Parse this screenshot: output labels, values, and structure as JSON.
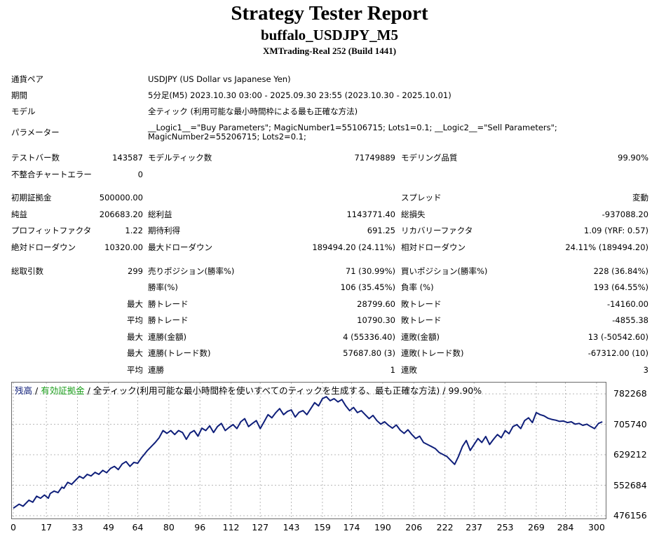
{
  "report": {
    "title": "Strategy Tester Report",
    "subtitle": "buffalo_USDJPY_M5",
    "server": "XMTrading-Real 252 (Build 1441)"
  },
  "info": {
    "symbol_label": "通貨ペア",
    "symbol_value": "USDJPY (US Dollar vs Japanese Yen)",
    "period_label": "期間",
    "period_value": "5分足(M5) 2023.10.30 03:00 - 2025.09.30 23:55 (2023.10.30 - 2025.10.01)",
    "model_label": "モデル",
    "model_value": "全ティック (利用可能な最小時間枠による最も正確な方法)",
    "params_label": "パラメーター",
    "params_value": "__Logic1__=\"Buy Parameters\"; MagicNumber1=55106715; Lots1=0.1; __Logic2__=\"Sell Parameters\"; MagicNumber2=55206715; Lots2=0.1;"
  },
  "bars": {
    "test_bars_label": "テストバー数",
    "test_bars": "143587",
    "model_ticks_label": "モデルティック数",
    "model_ticks": "71749889",
    "model_quality_label": "モデリング品質",
    "model_quality": "99.90%",
    "mismatch_label": "不整合チャートエラー",
    "mismatch": "0"
  },
  "stats": {
    "initial_deposit_label": "初期証拠金",
    "initial_deposit": "500000.00",
    "spread_label": "スプレッド",
    "spread": "変動",
    "net_profit_label": "純益",
    "net_profit": "206683.20",
    "gross_profit_label": "総利益",
    "gross_profit": "1143771.40",
    "gross_loss_label": "総損失",
    "gross_loss": "-937088.20",
    "profit_factor_label": "プロフィットファクタ",
    "profit_factor": "1.22",
    "expected_payoff_label": "期待利得",
    "expected_payoff": "691.25",
    "recovery_factor_label": "リカバリーファクタ",
    "recovery_factor": "1.09 (YRF: 0.57)",
    "abs_dd_label": "絶対ドローダウン",
    "abs_dd": "10320.00",
    "max_dd_label": "最大ドローダウン",
    "max_dd": "189494.20 (24.11%)",
    "rel_dd_label": "相対ドローダウン",
    "rel_dd": "24.11% (189494.20)"
  },
  "trades": {
    "total_label": "総取引数",
    "total": "299",
    "short_label": "売りポジション(勝率%)",
    "short": "71 (30.99%)",
    "long_label": "買いポジション(勝率%)",
    "long": "228 (36.84%)",
    "win_rate_label": "勝率(%)",
    "win_rate": "106 (35.45%)",
    "loss_rate_label": "負率 (%)",
    "loss_rate": "193 (64.55%)",
    "max_label": "最大",
    "avg_label": "平均",
    "win_trade_label": "勝トレード",
    "lose_trade_label": "敗トレード",
    "largest_win": "28799.60",
    "largest_loss": "-14160.00",
    "avg_win": "10790.30",
    "avg_loss": "-4855.38",
    "cons_wins_amount_label": "連勝(金額)",
    "cons_wins_amount": "4 (55336.40)",
    "cons_losses_amount_label": "連敗(金額)",
    "cons_losses_amount": "13 (-50542.60)",
    "cons_profit_label": "連勝(トレード数)",
    "cons_profit": "57687.80 (3)",
    "cons_loss_label": "連敗(トレード数)",
    "cons_loss": "-67312.00 (10)",
    "avg_cons_wins_label": "連勝",
    "avg_cons_wins": "1",
    "avg_cons_losses_label": "連敗",
    "avg_cons_losses": "3"
  },
  "chart_data": {
    "type": "line",
    "legend": {
      "balance": "残高",
      "sep1": " / ",
      "equity": "有効証拠金",
      "sep2": " / ",
      "model": "全ティック(利用可能な最小時間枠を使いすべてのティックを生成する、最も正確な方法)",
      "sep3": " / ",
      "quality": "99.90%"
    },
    "colors": {
      "balance": "#0f1f7a",
      "equity": "#1a9e1a",
      "grid": "#b8b8b8"
    },
    "x_ticks": [
      0,
      17,
      33,
      49,
      64,
      80,
      96,
      112,
      127,
      143,
      159,
      174,
      190,
      206,
      222,
      237,
      253,
      269,
      284,
      300
    ],
    "y_ticks": [
      782268,
      705740,
      629212,
      552684,
      476156
    ],
    "xlim": [
      0,
      304
    ],
    "ylim": [
      476156,
      800000
    ],
    "grid": true,
    "series": [
      {
        "name": "残高",
        "x": [
          0,
          3,
          5,
          8,
          10,
          12,
          14,
          16,
          18,
          19,
          21,
          23,
          25,
          26,
          28,
          30,
          32,
          34,
          36,
          38,
          40,
          42,
          44,
          46,
          48,
          50,
          52,
          54,
          56,
          58,
          60,
          62,
          64,
          66,
          67,
          69,
          71,
          73,
          75,
          77,
          79,
          81,
          83,
          85,
          87,
          89,
          91,
          93,
          95,
          97,
          99,
          101,
          103,
          105,
          107,
          109,
          111,
          113,
          115,
          117,
          119,
          121,
          123,
          125,
          127,
          129,
          131,
          133,
          135,
          137,
          139,
          141,
          143,
          145,
          147,
          149,
          151,
          153,
          155,
          157,
          159,
          161,
          163,
          165,
          167,
          169,
          171,
          173,
          175,
          177,
          179,
          181,
          183,
          185,
          187,
          189,
          191,
          193,
          195,
          197,
          199,
          201,
          203,
          205,
          207,
          209,
          211,
          213,
          215,
          217,
          219,
          221,
          223,
          225,
          227,
          229,
          231,
          233,
          235,
          237,
          239,
          241,
          243,
          245,
          247,
          249,
          251,
          253,
          255,
          257,
          259,
          261,
          263,
          265,
          267,
          269,
          271,
          273,
          275,
          277,
          279,
          281,
          283,
          285,
          287,
          289,
          291,
          293,
          295,
          297,
          299,
          301,
          303
        ],
        "values": [
          495000,
          505000,
          500000,
          515000,
          510000,
          525000,
          520000,
          528000,
          520000,
          532000,
          538000,
          534000,
          548000,
          545000,
          560000,
          555000,
          565000,
          575000,
          570000,
          580000,
          576000,
          585000,
          580000,
          590000,
          584000,
          595000,
          600000,
          592000,
          606000,
          612000,
          600000,
          610000,
          608000,
          622000,
          628000,
          640000,
          650000,
          660000,
          672000,
          690000,
          683000,
          690000,
          680000,
          690000,
          685000,
          668000,
          684000,
          690000,
          676000,
          696000,
          690000,
          702000,
          685000,
          700000,
          708000,
          690000,
          698000,
          705000,
          695000,
          712000,
          720000,
          700000,
          708000,
          715000,
          695000,
          712000,
          730000,
          722000,
          735000,
          745000,
          730000,
          738000,
          742000,
          724000,
          736000,
          740000,
          730000,
          745000,
          760000,
          752000,
          770000,
          775000,
          765000,
          770000,
          762000,
          768000,
          752000,
          740000,
          748000,
          735000,
          740000,
          730000,
          720000,
          728000,
          715000,
          706000,
          712000,
          703000,
          696000,
          704000,
          691000,
          683000,
          692000,
          680000,
          670000,
          676000,
          660000,
          655000,
          650000,
          645000,
          635000,
          630000,
          625000,
          615000,
          605000,
          625000,
          650000,
          665000,
          640000,
          655000,
          670000,
          660000,
          675000,
          655000,
          668000,
          680000,
          672000,
          690000,
          682000,
          700000,
          705000,
          695000,
          715000,
          722000,
          710000,
          735000,
          730000,
          727000,
          721000,
          718000,
          716000,
          713000,
          714000,
          710000,
          712000,
          706000,
          708000,
          703000,
          706000,
          700000,
          695000,
          708000,
          712000
        ]
      }
    ]
  }
}
